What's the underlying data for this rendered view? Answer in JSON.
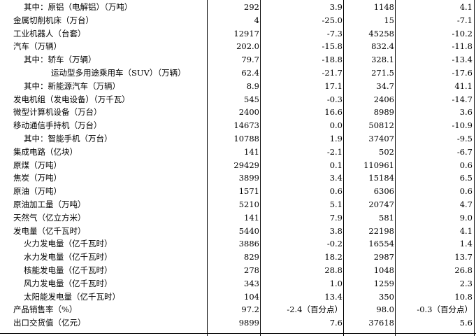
{
  "rows": [
    {
      "name": "其中：原铝（电解铝）（万吨）",
      "indent": 1,
      "v1": "292",
      "v2": "3.9",
      "v3": "1148",
      "v4": "4.1"
    },
    {
      "name": "金属切削机床（万台）",
      "indent": 0,
      "v1": "4",
      "v2": "-25.0",
      "v3": "15",
      "v4": "-7.1"
    },
    {
      "name": "工业机器人（台套）",
      "indent": 0,
      "v1": "12917",
      "v2": "-7.3",
      "v3": "45258",
      "v4": "-10.2"
    },
    {
      "name": "汽车（万辆）",
      "indent": 0,
      "v1": "202.0",
      "v2": "-15.8",
      "v3": "832.4",
      "v4": "-11.8"
    },
    {
      "name": "其中：轿车（万辆）",
      "indent": 1,
      "v1": "79.7",
      "v2": "-18.8",
      "v3": "328.1",
      "v4": "-13.4"
    },
    {
      "name": "运动型多用途乘用车（SUV）（万辆）",
      "indent": 2,
      "v1": "62.4",
      "v2": "-21.7",
      "v3": "271.5",
      "v4": "-17.6"
    },
    {
      "name": "其中：新能源汽车（万辆）",
      "indent": 1,
      "v1": "8.9",
      "v2": "17.1",
      "v3": "34.7",
      "v4": "41.1"
    },
    {
      "name": "发电机组（发电设备）（万千瓦）",
      "indent": 0,
      "v1": "545",
      "v2": "-0.3",
      "v3": "2406",
      "v4": "-14.7"
    },
    {
      "name": "微型计算机设备（万台）",
      "indent": 0,
      "v1": "2400",
      "v2": "16.6",
      "v3": "8989",
      "v4": "3.6"
    },
    {
      "name": "移动通信手持机（万台）",
      "indent": 0,
      "v1": "14673",
      "v2": "0.0",
      "v3": "50812",
      "v4": "-10.9"
    },
    {
      "name": "其中：智能手机（万台）",
      "indent": 1,
      "v1": "10788",
      "v2": "1.9",
      "v3": "37407",
      "v4": "-9.5"
    },
    {
      "name": "集成电路（亿块）",
      "indent": 0,
      "v1": "141",
      "v2": "-2.1",
      "v3": "502",
      "v4": "-6.7"
    },
    {
      "name": "原煤（万吨）",
      "indent": 0,
      "v1": "29429",
      "v2": "0.1",
      "v3": "110961",
      "v4": "0.6"
    },
    {
      "name": "焦炭（万吨）",
      "indent": 0,
      "v1": "3899",
      "v2": "3.4",
      "v3": "15184",
      "v4": "6.5"
    },
    {
      "name": "原油（万吨）",
      "indent": 0,
      "v1": "1571",
      "v2": "0.6",
      "v3": "6306",
      "v4": "0.6"
    },
    {
      "name": "原油加工量（万吨）",
      "indent": 0,
      "v1": "5210",
      "v2": "5.1",
      "v3": "20747",
      "v4": "4.7"
    },
    {
      "name": "天然气（亿立方米）",
      "indent": 0,
      "v1": "141",
      "v2": "7.9",
      "v3": "581",
      "v4": "9.0"
    },
    {
      "name": "发电量（亿千瓦时）",
      "indent": 0,
      "v1": "5440",
      "v2": "3.8",
      "v3": "22198",
      "v4": "4.1"
    },
    {
      "name": "火力发电量（亿千瓦时）",
      "indent": 1,
      "v1": "3886",
      "v2": "-0.2",
      "v3": "16554",
      "v4": "1.4"
    },
    {
      "name": "水力发电量（亿千瓦时）",
      "indent": 1,
      "v1": "829",
      "v2": "18.2",
      "v3": "2987",
      "v4": "13.7"
    },
    {
      "name": "核能发电量（亿千瓦时）",
      "indent": 1,
      "v1": "278",
      "v2": "28.8",
      "v3": "1048",
      "v4": "26.8"
    },
    {
      "name": "风力发电量（亿千瓦时）",
      "indent": 1,
      "v1": "343",
      "v2": "1.0",
      "v3": "1259",
      "v4": "2.3"
    },
    {
      "name": "太阳能发电量（亿千瓦时）",
      "indent": 1,
      "v1": "104",
      "v2": "13.4",
      "v3": "350",
      "v4": "10.8"
    },
    {
      "name": "产品销售率（%）",
      "indent": 0,
      "v1": "97.2",
      "v2": "-2.4（百分点）",
      "v3": "98.0",
      "v4": "-0.3（百分点）"
    },
    {
      "name": "出口交货值（亿元）",
      "indent": 0,
      "v1": "9899",
      "v2": "7.6",
      "v3": "37618",
      "v4": "5.6"
    }
  ]
}
